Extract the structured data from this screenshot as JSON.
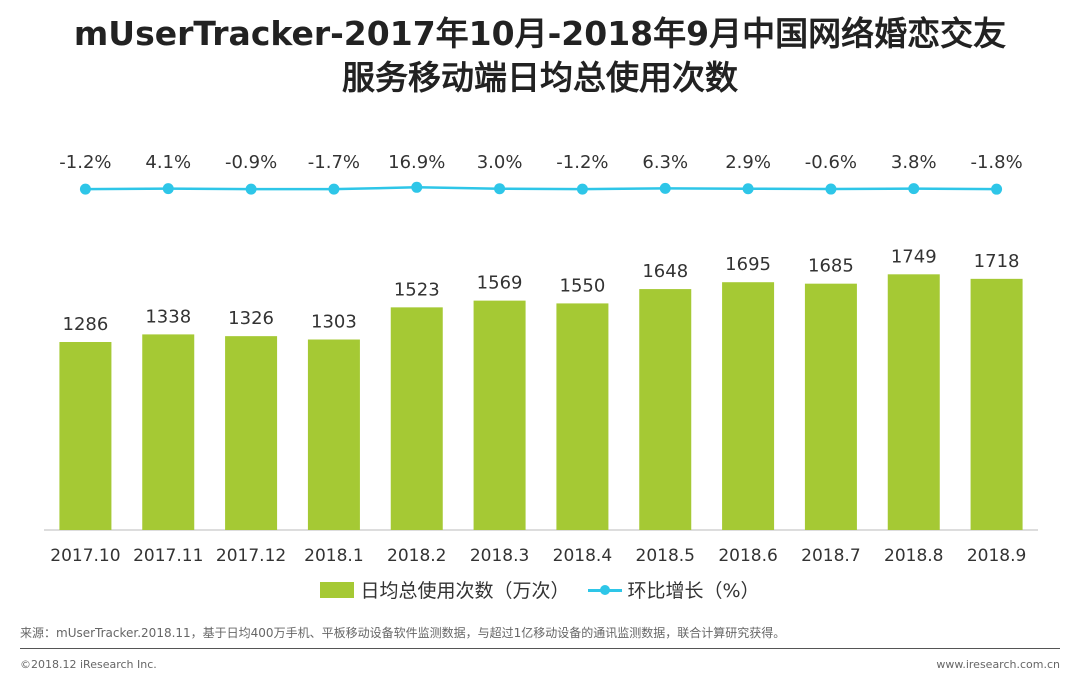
{
  "header": {
    "title_line1": "mUserTracker-2017年10月-2018年9月中国网络婚恋交友",
    "title_line2": "服务移动端日均总使用次数"
  },
  "chart_data": {
    "type": "bar",
    "title": "mUserTracker-2017年10月-2018年9月中国网络婚恋交友服务移动端日均总使用次数",
    "categories": [
      "2017.10",
      "2017.11",
      "2017.12",
      "2018.1",
      "2018.2",
      "2018.3",
      "2018.4",
      "2018.5",
      "2018.6",
      "2018.7",
      "2018.8",
      "2018.9"
    ],
    "series": [
      {
        "name": "日均总使用次数（万次）",
        "type": "bar",
        "values": [
          1286,
          1338,
          1326,
          1303,
          1523,
          1569,
          1550,
          1648,
          1695,
          1685,
          1749,
          1718
        ]
      },
      {
        "name": "环比增长（%）",
        "type": "line",
        "values": [
          -1.2,
          4.1,
          -0.9,
          -1.7,
          16.9,
          3.0,
          -1.2,
          6.3,
          2.9,
          -0.6,
          3.8,
          -1.8
        ],
        "labels": [
          "-1.2%",
          "4.1%",
          "-0.9%",
          "-1.7%",
          "16.9%",
          "3.0%",
          "-1.2%",
          "6.3%",
          "2.9%",
          "-0.6%",
          "3.8%",
          "-1.8%"
        ]
      }
    ],
    "ylim": [
      0,
      1900
    ],
    "colors": {
      "bar": "#A5C934",
      "line": "#2EC6E8",
      "axis": "#BBBBBB"
    }
  },
  "legend": {
    "bar_label": "日均总使用次数（万次）",
    "line_label": "环比增长（%）"
  },
  "footer": {
    "source": "来源：mUserTracker.2018.11，基于日均400万手机、平板移动设备软件监测数据，与超过1亿移动设备的通讯监测数据，联合计算研究获得。",
    "copyright": "©2018.12 iResearch Inc.",
    "site": "www.iresearch.com.cn"
  }
}
